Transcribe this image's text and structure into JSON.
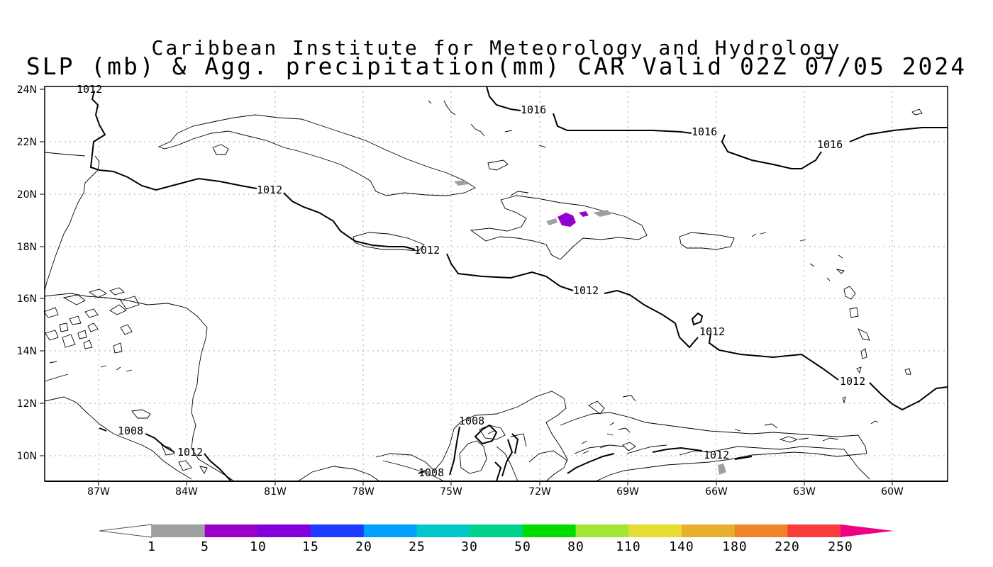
{
  "header": {
    "title_line1": "Caribbean Institute for Meteorology and Hydrology",
    "title_line2": "SLP (mb) & Agg. precipitation(mm) CAR Valid 02Z 07/05 2024"
  },
  "map": {
    "lat_labels": [
      "24N",
      "22N",
      "20N",
      "18N",
      "16N",
      "14N",
      "12N",
      "10N"
    ],
    "lon_labels": [
      "87W",
      "84W",
      "81W",
      "78W",
      "75W",
      "72W",
      "69W",
      "66W",
      "63W",
      "60W"
    ],
    "isobar_labels": [
      "1012",
      "1016",
      "1016",
      "1016",
      "1012",
      "1012",
      "1012",
      "1012",
      "1012",
      "1008",
      "1008",
      "1012",
      "1008",
      "1012"
    ]
  },
  "colorbar": {
    "labels": [
      "1",
      "5",
      "10",
      "15",
      "20",
      "25",
      "30",
      "50",
      "80",
      "110",
      "140",
      "180",
      "220",
      "250"
    ],
    "colors": [
      "#a0a0a0",
      "#9a00c8",
      "#8200dc",
      "#1e3cff",
      "#00a0ff",
      "#00c8c8",
      "#00d28c",
      "#00dc00",
      "#a0e632",
      "#e6dc32",
      "#e6af2d",
      "#f08228",
      "#fa3c3c",
      "#f00082"
    ]
  }
}
